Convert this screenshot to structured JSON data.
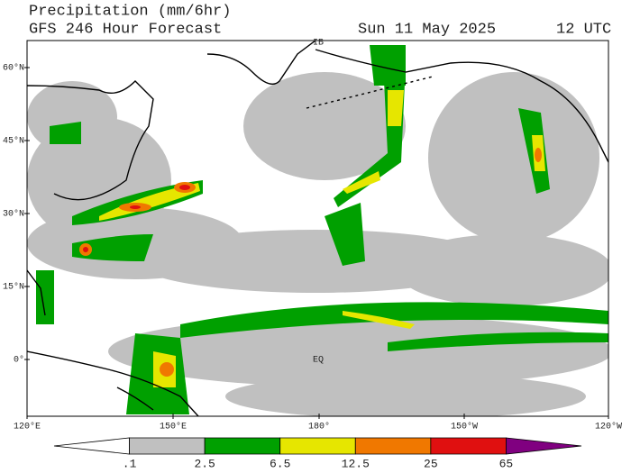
{
  "header": {
    "title": "Precipitation (mm/6hr)",
    "subtitle": "GFS 246 Hour Forecast",
    "date": "Sun 11 May 2025",
    "time": "12 UTC"
  },
  "map": {
    "lat_labels": [
      "60°N",
      "45°N",
      "30°N",
      "15°N",
      "0°"
    ],
    "lon_labels": [
      "120°E",
      "150°E",
      "180°",
      "150°W",
      "120°W"
    ],
    "place_labels": [
      "IB",
      "EQ"
    ]
  },
  "legend": {
    "labels": [
      ".1",
      "2.5",
      "6.5",
      "12.5",
      "25",
      "65"
    ],
    "colors": [
      "#ffffff",
      "#c0c0c0",
      "#00a000",
      "#e6e600",
      "#f07800",
      "#e01010",
      "#800080"
    ]
  }
}
